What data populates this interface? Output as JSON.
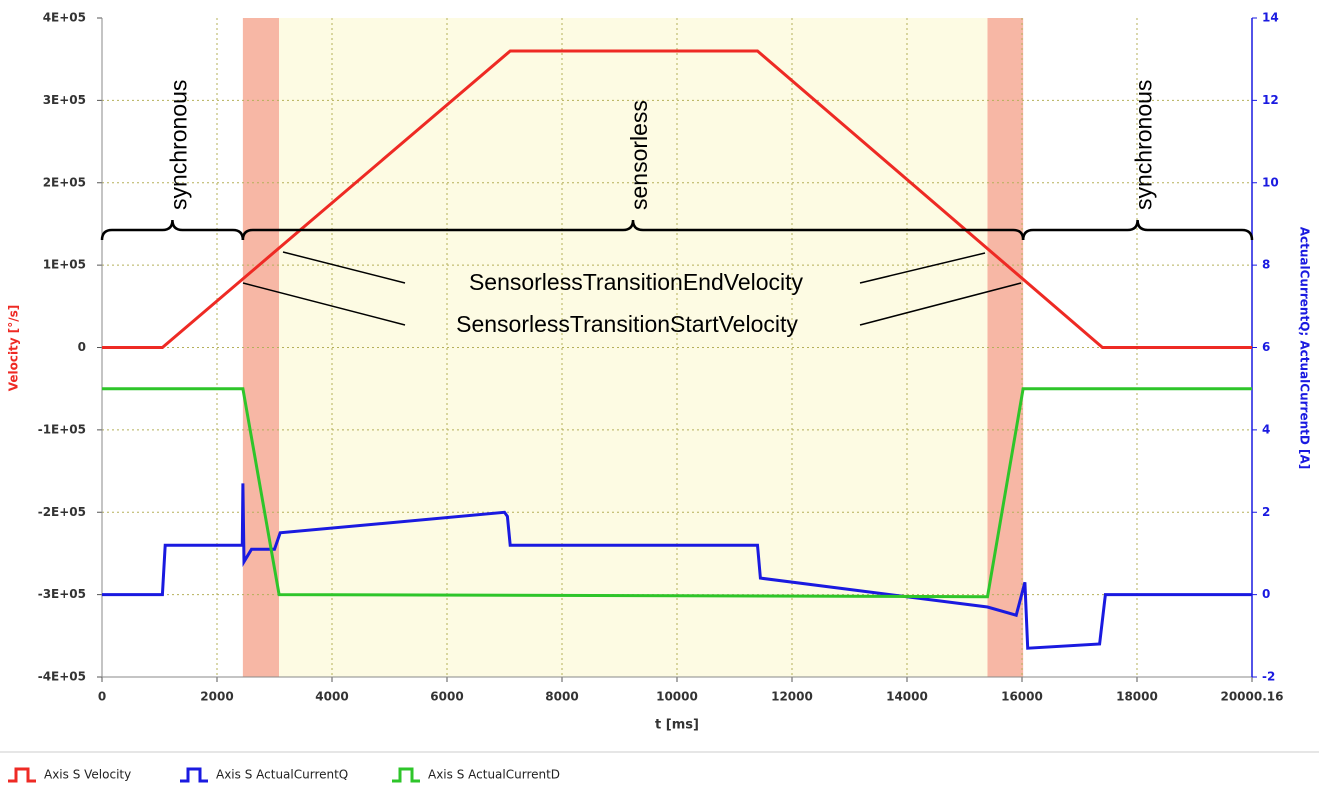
{
  "chart_data": {
    "type": "line",
    "xlabel": "t [ms]",
    "ylabel": "Velocity [°/s]",
    "y2label": "ActualCurrentQ; ActualCurrentD [A]",
    "xlim": [
      0,
      20000.16
    ],
    "xticks": [
      0,
      2000,
      4000,
      6000,
      8000,
      10000,
      12000,
      14000,
      16000,
      18000,
      20000.16
    ],
    "ylim": [
      -400000,
      400000
    ],
    "yticks": [
      {
        "value": -400000,
        "label": "-4E+05"
      },
      {
        "value": -300000,
        "label": "-3E+05"
      },
      {
        "value": -200000,
        "label": "-2E+05"
      },
      {
        "value": -100000,
        "label": "-1E+05"
      },
      0,
      {
        "value": 100000,
        "label": "1E+05"
      },
      {
        "value": 200000,
        "label": "2E+05"
      },
      {
        "value": 300000,
        "label": "3E+05"
      },
      {
        "value": 400000,
        "label": "4E+05"
      }
    ],
    "y2lim": [
      -2,
      14
    ],
    "y2ticks": [
      -2,
      0,
      2,
      4,
      6,
      8,
      10,
      12,
      14
    ],
    "grid": true,
    "regions": [
      {
        "x": [
          2450,
          3080
        ],
        "color": "#f7b7a5"
      },
      {
        "x": [
          3080,
          15400
        ],
        "color": "#fdfbe3"
      },
      {
        "x": [
          15400,
          16020
        ],
        "color": "#f7b7a5"
      }
    ],
    "phases": [
      "synchronous",
      "sensorless",
      "synchronous"
    ],
    "annotations": [
      "SensorlessTransitionEndVelocity",
      "SensorlessTransitionStartVelocity"
    ],
    "series": [
      {
        "name": "Axis S Velocity",
        "color": "#ee2a24",
        "x": [
          0,
          1050,
          7100,
          11400,
          17400,
          20000.16
        ],
        "values": [
          0,
          0,
          360000,
          360000,
          0,
          0
        ]
      },
      {
        "name": "Axis S ActualCurrentQ",
        "color": "#1a1ae0",
        "axis": "y2",
        "x": [
          0,
          1050,
          1100,
          2440,
          2450,
          2470,
          2600,
          3000,
          3100,
          7000,
          7050,
          7100,
          11400,
          11450,
          15400,
          15900,
          16050,
          16100,
          17350,
          17450,
          20000.16
        ],
        "values": [
          0,
          0,
          1.2,
          1.2,
          2.7,
          0.8,
          1.1,
          1.1,
          1.5,
          2.0,
          1.9,
          1.2,
          1.2,
          0.4,
          -0.3,
          -0.5,
          0.3,
          -1.3,
          -1.2,
          0,
          0
        ]
      },
      {
        "name": "Axis S ActualCurrentD",
        "color": "#2ec52a",
        "axis": "y2",
        "x": [
          0,
          2450,
          3080,
          15400,
          16020,
          20000.16
        ],
        "values": [
          5,
          5,
          0,
          -0.05,
          5,
          5
        ]
      }
    ]
  }
}
